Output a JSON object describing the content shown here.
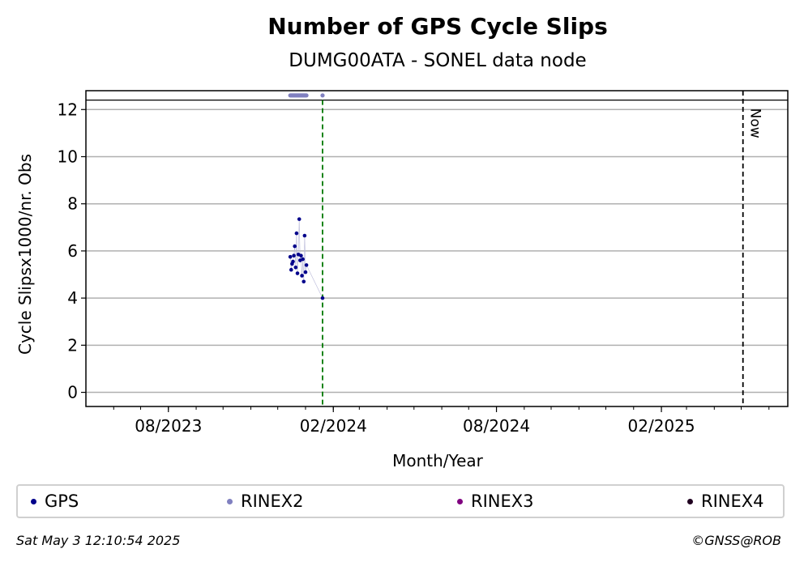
{
  "chart_data": {
    "type": "scatter",
    "title": "Number of GPS Cycle Slips",
    "subtitle": "DUMG00ATA - SONEL data node",
    "xlabel": "Month/Year",
    "ylabel": "Cycle Slipsx1000/nr. Obs",
    "xlim": [
      "2023-05-01",
      "2025-06-22"
    ],
    "ylim": [
      -0.6,
      12.8
    ],
    "yticks": [
      0,
      2,
      4,
      6,
      8,
      10,
      12
    ],
    "xticks": [
      {
        "date": "2023-08-01",
        "label": "08/2023"
      },
      {
        "date": "2024-02-01",
        "label": "02/2024"
      },
      {
        "date": "2024-08-01",
        "label": "08/2024"
      },
      {
        "date": "2025-02-01",
        "label": "02/2025"
      }
    ],
    "grid": "horizontal",
    "green_line_date": "2024-01-20",
    "now_date": "2025-05-03",
    "now_label": "Now",
    "series": [
      {
        "name": "GPS",
        "color": "#00008b",
        "points": [
          {
            "x": "2023-12-15",
            "y": 5.75
          },
          {
            "x": "2023-12-16",
            "y": 5.2
          },
          {
            "x": "2023-12-17",
            "y": 5.45
          },
          {
            "x": "2023-12-18",
            "y": 5.55
          },
          {
            "x": "2023-12-19",
            "y": 5.8
          },
          {
            "x": "2023-12-20",
            "y": 6.2
          },
          {
            "x": "2023-12-21",
            "y": 5.3
          },
          {
            "x": "2023-12-22",
            "y": 6.75
          },
          {
            "x": "2023-12-23",
            "y": 5.05
          },
          {
            "x": "2023-12-24",
            "y": 5.85
          },
          {
            "x": "2023-12-25",
            "y": 7.35
          },
          {
            "x": "2023-12-26",
            "y": 5.6
          },
          {
            "x": "2023-12-27",
            "y": 5.8
          },
          {
            "x": "2023-12-28",
            "y": 4.95
          },
          {
            "x": "2023-12-29",
            "y": 5.65
          },
          {
            "x": "2023-12-30",
            "y": 4.7
          },
          {
            "x": "2023-12-31",
            "y": 6.65
          },
          {
            "x": "2024-01-01",
            "y": 5.1
          },
          {
            "x": "2024-01-02",
            "y": 5.4
          },
          {
            "x": "2024-01-20",
            "y": 4.0
          }
        ]
      },
      {
        "name": "RINEX2",
        "color": "#8080c0",
        "points_y": 12.6,
        "dates": [
          "2023-12-15",
          "2023-12-16",
          "2023-12-17",
          "2023-12-18",
          "2023-12-19",
          "2023-12-20",
          "2023-12-21",
          "2023-12-22",
          "2023-12-23",
          "2023-12-24",
          "2023-12-25",
          "2023-12-26",
          "2023-12-27",
          "2023-12-28",
          "2023-12-29",
          "2023-12-30",
          "2023-12-31",
          "2024-01-01",
          "2024-01-02",
          "2024-01-20"
        ]
      },
      {
        "name": "RINEX3",
        "color": "#800080",
        "points": []
      },
      {
        "name": "RINEX4",
        "color": "#200020",
        "points": []
      }
    ]
  },
  "legend": {
    "items": [
      {
        "label": "GPS",
        "color": "#00008b"
      },
      {
        "label": "RINEX2",
        "color": "#8080c0"
      },
      {
        "label": "RINEX3",
        "color": "#800080"
      },
      {
        "label": "RINEX4",
        "color": "#200020"
      }
    ]
  },
  "footer": {
    "timestamp": "Sat May  3 12:10:54 2025",
    "credit": "©GNSS@ROB"
  }
}
